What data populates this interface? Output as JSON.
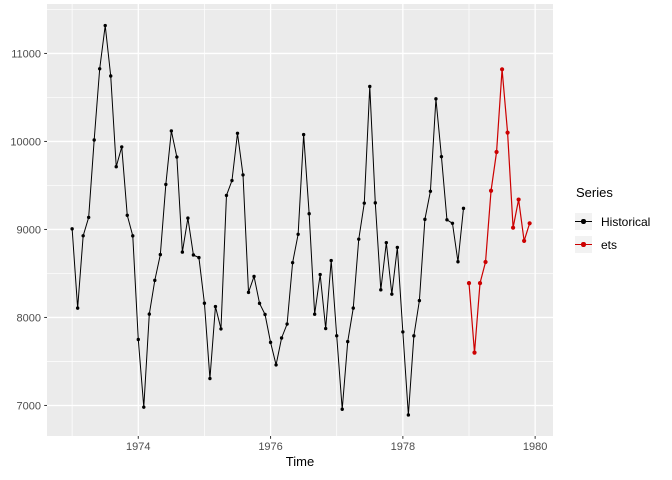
{
  "legend": {
    "title": "Series"
  },
  "chart_data": {
    "type": "line",
    "title": "",
    "xlabel": "Time",
    "ylabel": "",
    "xlim": [
      1972.62,
      1980.27
    ],
    "ylim": [
      6653,
      11562
    ],
    "x_ticks": [
      1974,
      1976,
      1978,
      1980
    ],
    "x_minor_ticks": [
      1973,
      1975,
      1977,
      1979
    ],
    "y_ticks": [
      7000,
      8000,
      9000,
      10000,
      11000
    ],
    "y_minor_ticks": [
      7500,
      8500,
      9500,
      10500,
      11500
    ],
    "grid": "major+minor",
    "legend_position": "right",
    "panel_color": "#EBEBEB",
    "gridline_color": "#FFFFFF",
    "axis_text_color": "#4D4D4D",
    "series": [
      {
        "name": "Historical",
        "color": "#000000",
        "start": 1973,
        "frequency": 12,
        "values": [
          9007,
          8106,
          8928,
          9137,
          10017,
          10826,
          11317,
          10744,
          9713,
          9938,
          9161,
          8927,
          7750,
          6981,
          8038,
          8422,
          8714,
          9512,
          10120,
          9823,
          8743,
          9129,
          8710,
          8680,
          8162,
          7306,
          8124,
          7870,
          9387,
          9556,
          10093,
          9620,
          8285,
          8466,
          8160,
          8034,
          7717,
          7461,
          7767,
          7925,
          8623,
          8945,
          10078,
          9179,
          8037,
          8488,
          7874,
          8647,
          7792,
          6957,
          7726,
          8106,
          8890,
          9299,
          10625,
          9302,
          8314,
          8850,
          8265,
          8796,
          7836,
          6892,
          7791,
          8192,
          9115,
          9434,
          10484,
          9827,
          9110,
          9070,
          8633,
          9240
        ]
      },
      {
        "name": "ets",
        "color": "#CC0000",
        "start": 1979,
        "frequency": 12,
        "values": [
          8390,
          7600,
          8390,
          8630,
          9440,
          9880,
          10820,
          10100,
          9020,
          9340,
          8870,
          9070
        ]
      }
    ]
  }
}
